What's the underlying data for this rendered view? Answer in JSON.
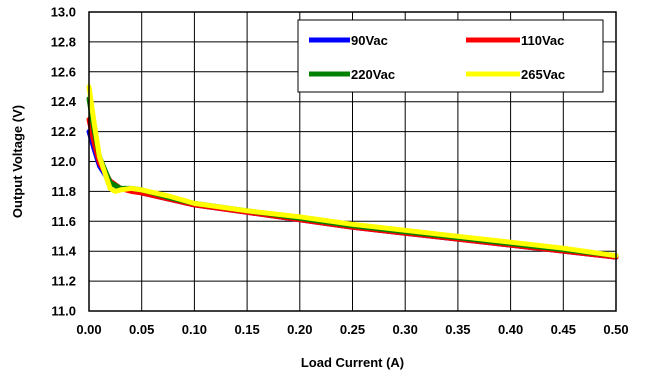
{
  "chart_data": {
    "type": "line",
    "title": "",
    "xlabel": "Load Current (A)",
    "ylabel": "Output Voltage (V)",
    "xlim": [
      0.0,
      0.5
    ],
    "ylim": [
      11.0,
      13.0
    ],
    "xticks": [
      "0.00",
      "0.05",
      "0.10",
      "0.15",
      "0.20",
      "0.25",
      "0.30",
      "0.35",
      "0.40",
      "0.45",
      "0.50"
    ],
    "yticks": [
      "11.0",
      "11.2",
      "11.4",
      "11.6",
      "11.8",
      "12.0",
      "12.2",
      "12.4",
      "12.6",
      "12.8",
      "13.0"
    ],
    "grid": true,
    "legend_position": "top-right",
    "series": [
      {
        "name": "90Vac",
        "color": "#0000ff",
        "x": [
          0.0,
          0.005,
          0.01,
          0.02,
          0.03,
          0.04,
          0.05,
          0.075,
          0.1,
          0.15,
          0.2,
          0.25,
          0.3,
          0.35,
          0.4,
          0.45,
          0.5
        ],
        "y": [
          12.2,
          12.08,
          11.97,
          11.86,
          11.82,
          11.81,
          11.79,
          11.75,
          11.71,
          11.66,
          11.61,
          11.56,
          11.52,
          11.48,
          11.44,
          11.4,
          11.36
        ]
      },
      {
        "name": "110Vac",
        "color": "#ff0000",
        "x": [
          0.0,
          0.005,
          0.01,
          0.02,
          0.03,
          0.04,
          0.05,
          0.075,
          0.1,
          0.15,
          0.2,
          0.25,
          0.3,
          0.35,
          0.4,
          0.45,
          0.5
        ],
        "y": [
          12.28,
          12.12,
          11.99,
          11.87,
          11.82,
          11.8,
          11.79,
          11.75,
          11.71,
          11.66,
          11.61,
          11.56,
          11.52,
          11.48,
          11.44,
          11.4,
          11.36
        ]
      },
      {
        "name": "220Vac",
        "color": "#008000",
        "x": [
          0.0,
          0.005,
          0.01,
          0.02,
          0.03,
          0.04,
          0.05,
          0.075,
          0.1,
          0.15,
          0.2,
          0.25,
          0.3,
          0.35,
          0.4,
          0.45,
          0.5
        ],
        "y": [
          12.42,
          12.2,
          12.03,
          11.86,
          11.82,
          11.82,
          11.81,
          11.76,
          11.72,
          11.67,
          11.62,
          11.57,
          11.53,
          11.49,
          11.45,
          11.41,
          11.37
        ]
      },
      {
        "name": "265Vac",
        "color": "#ffff00",
        "x": [
          0.0,
          0.005,
          0.01,
          0.02,
          0.025,
          0.03,
          0.04,
          0.05,
          0.075,
          0.1,
          0.15,
          0.2,
          0.25,
          0.3,
          0.35,
          0.4,
          0.45,
          0.5
        ],
        "y": [
          12.5,
          12.25,
          12.03,
          11.82,
          11.8,
          11.81,
          11.82,
          11.81,
          11.77,
          11.72,
          11.67,
          11.63,
          11.58,
          11.54,
          11.5,
          11.46,
          11.42,
          11.37
        ]
      }
    ]
  }
}
